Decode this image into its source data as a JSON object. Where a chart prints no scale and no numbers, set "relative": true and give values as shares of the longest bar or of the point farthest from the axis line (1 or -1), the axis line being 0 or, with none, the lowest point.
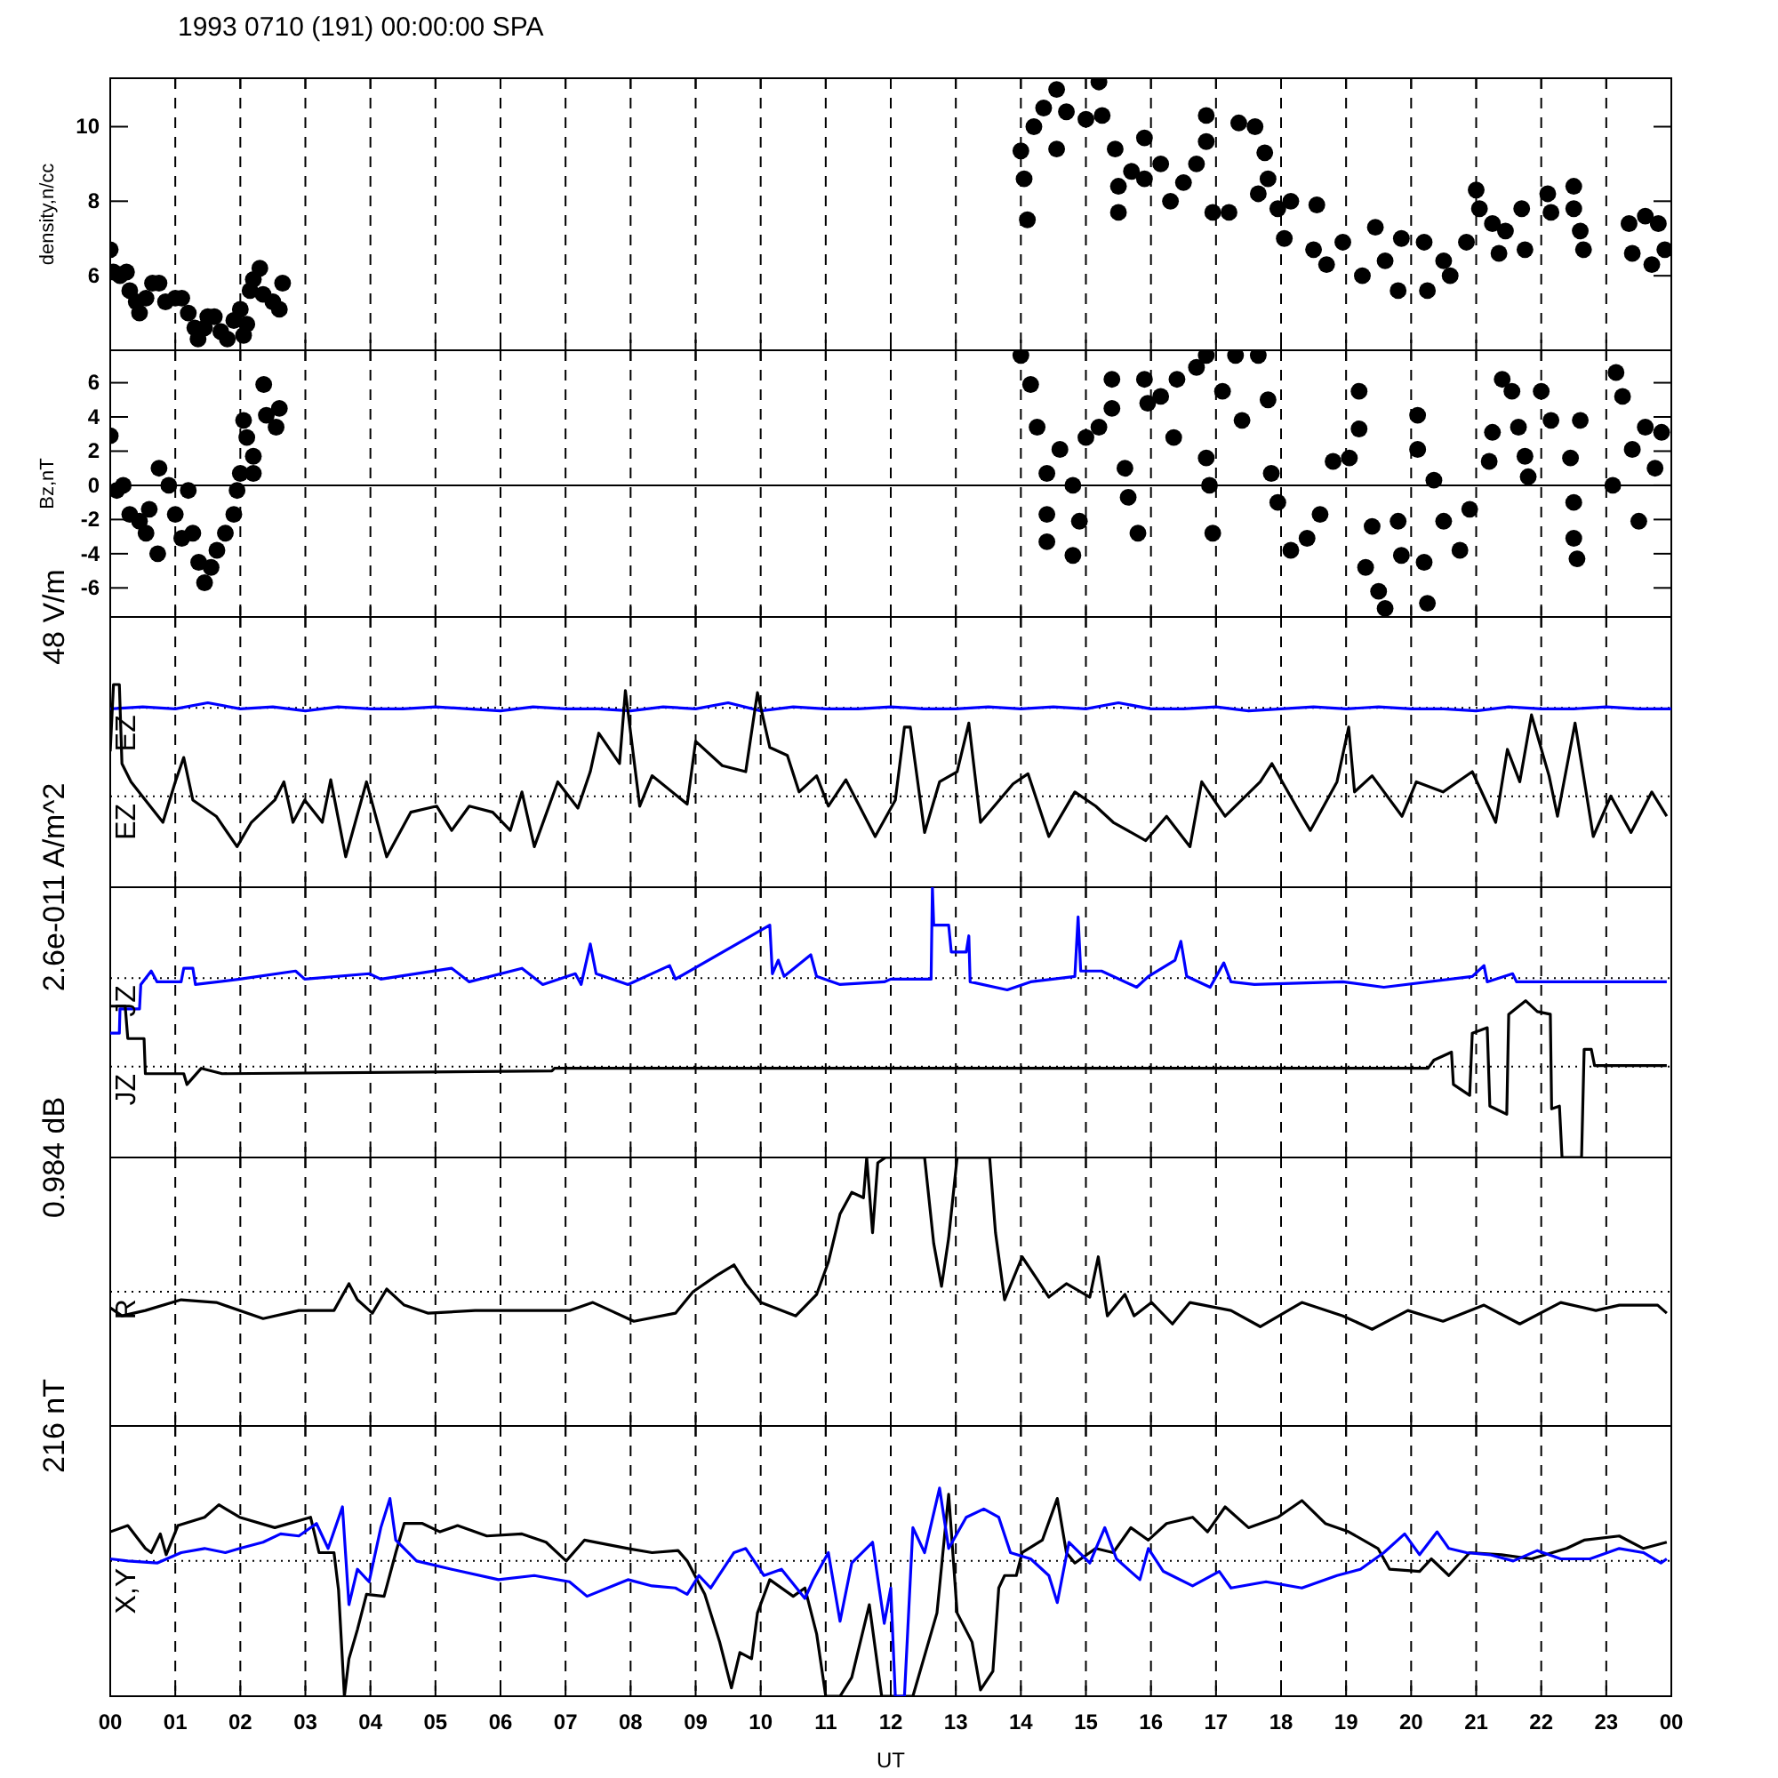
{
  "chart_data": [
    {
      "type": "scatter",
      "title": "1993 0710 (191) 00:00:00 SPA",
      "ylabel": "density,n/cc",
      "color": "#000000",
      "marker": "circle",
      "grid": "x",
      "tick_labels": "y",
      "xlim": [
        0,
        24
      ],
      "xticks": [
        {
          "value": 0,
          "label": null
        },
        {
          "value": 1,
          "label": null
        },
        {
          "value": 2,
          "label": null
        },
        {
          "value": 3,
          "label": null
        },
        {
          "value": 4,
          "label": null
        },
        {
          "value": 5,
          "label": null
        },
        {
          "value": 6,
          "label": null
        },
        {
          "value": 7,
          "label": null
        },
        {
          "value": 8,
          "label": null
        },
        {
          "value": 9,
          "label": null
        },
        {
          "value": 10,
          "label": null
        },
        {
          "value": 11,
          "label": null
        },
        {
          "value": 12,
          "label": null
        },
        {
          "value": 13,
          "label": null
        },
        {
          "value": 14,
          "label": null
        },
        {
          "value": 15,
          "label": null
        },
        {
          "value": 16,
          "label": null
        },
        {
          "value": 17,
          "label": null
        },
        {
          "value": 18,
          "label": null
        },
        {
          "value": 19,
          "label": null
        },
        {
          "value": 20,
          "label": null
        },
        {
          "value": 21,
          "label": null
        },
        {
          "value": 22,
          "label": null
        },
        {
          "value": 23,
          "label": null
        },
        {
          "value": 24,
          "label": null
        }
      ],
      "ylim": [
        4,
        11.3
      ],
      "yticks": [
        6,
        8,
        10
      ],
      "x": [
        0,
        0.05,
        0.15,
        0.25,
        0.3,
        0.4,
        0.45,
        0.55,
        0.65,
        0.75,
        0.85,
        1.0,
        1.1,
        1.2,
        1.3,
        1.35,
        1.45,
        1.5,
        1.6,
        1.7,
        1.8,
        1.9,
        2.0,
        2.05,
        2.1,
        2.15,
        2.2,
        2.3,
        2.35,
        2.5,
        2.6,
        2.65,
        14.0,
        14.05,
        14.1,
        14.2,
        14.35,
        14.55,
        14.55,
        14.7,
        15.0,
        15.2,
        15.25,
        15.45,
        15.5,
        15.5,
        15.7,
        15.9,
        15.9,
        16.15,
        16.3,
        16.5,
        16.7,
        16.85,
        16.85,
        16.95,
        17.2,
        17.35,
        17.6,
        17.75,
        17.65,
        17.8,
        17.95,
        18.05,
        18.15,
        18.55,
        18.5,
        18.7,
        18.95,
        19.25,
        19.45,
        19.6,
        19.8,
        19.85,
        20.2,
        20.25,
        20.5,
        20.6,
        20.85,
        21.0,
        21.05,
        21.25,
        21.35,
        21.45,
        21.7,
        21.75,
        22.1,
        22.15,
        22.5,
        22.5,
        22.6,
        22.65,
        23.35,
        23.4,
        23.6,
        23.7,
        23.8,
        23.9
      ],
      "values": [
        6.7,
        6.1,
        6.0,
        6.1,
        5.6,
        5.3,
        5.0,
        5.4,
        5.8,
        5.8,
        5.3,
        5.4,
        5.4,
        5.0,
        4.6,
        4.3,
        4.6,
        4.9,
        4.9,
        4.5,
        4.3,
        4.8,
        5.1,
        4.4,
        4.7,
        5.6,
        5.9,
        6.2,
        5.5,
        5.3,
        5.1,
        5.8,
        9.35,
        8.6,
        7.5,
        10.0,
        10.5,
        11.0,
        9.4,
        10.4,
        10.2,
        11.2,
        10.3,
        9.4,
        8.4,
        7.7,
        8.8,
        9.7,
        8.6,
        9.0,
        8.0,
        8.5,
        9.0,
        10.3,
        9.6,
        7.7,
        7.7,
        10.1,
        10.0,
        9.3,
        8.2,
        8.6,
        7.8,
        7.0,
        8.0,
        7.9,
        6.7,
        6.3,
        6.9,
        6.0,
        7.3,
        6.4,
        5.6,
        7.0,
        6.9,
        5.6,
        6.4,
        6.0,
        6.9,
        8.3,
        7.8,
        7.4,
        6.6,
        7.2,
        7.8,
        6.7,
        8.2,
        7.7,
        8.4,
        7.8,
        7.2,
        6.7,
        7.4,
        6.6,
        7.6,
        6.3,
        7.4,
        6.7
      ]
    },
    {
      "type": "scatter",
      "ylabel": "Bz,nT",
      "color": "#000000",
      "marker": "circle",
      "grid": "x",
      "tick_labels": "y",
      "xlim": [
        0,
        24
      ],
      "xticks": [
        {
          "value": 0,
          "label": null
        },
        {
          "value": 1,
          "label": null
        },
        {
          "value": 2,
          "label": null
        },
        {
          "value": 3,
          "label": null
        },
        {
          "value": 4,
          "label": null
        },
        {
          "value": 5,
          "label": null
        },
        {
          "value": 6,
          "label": null
        },
        {
          "value": 7,
          "label": null
        },
        {
          "value": 8,
          "label": null
        },
        {
          "value": 9,
          "label": null
        },
        {
          "value": 10,
          "label": null
        },
        {
          "value": 11,
          "label": null
        },
        {
          "value": 12,
          "label": null
        },
        {
          "value": 13,
          "label": null
        },
        {
          "value": 14,
          "label": null
        },
        {
          "value": 15,
          "label": null
        },
        {
          "value": 16,
          "label": null
        },
        {
          "value": 17,
          "label": null
        },
        {
          "value": 18,
          "label": null
        },
        {
          "value": 19,
          "label": null
        },
        {
          "value": 20,
          "label": null
        },
        {
          "value": 21,
          "label": null
        },
        {
          "value": 22,
          "label": null
        },
        {
          "value": 23,
          "label": null
        },
        {
          "value": 24,
          "label": null
        }
      ],
      "ylim": [
        -7.7,
        7.9
      ],
      "yticks": [
        -6,
        -4,
        -2,
        0,
        2,
        4,
        6
      ],
      "ref_lines": [
        {
          "axis": "y",
          "value": 0
        }
      ],
      "x": [
        0,
        0.1,
        0.2,
        0.3,
        0.45,
        0.55,
        0.6,
        0.73,
        0.75,
        0.9,
        1.0,
        1.1,
        1.2,
        1.27,
        1.36,
        1.45,
        1.55,
        1.64,
        1.77,
        1.9,
        1.95,
        2.0,
        2.05,
        2.1,
        2.2,
        2.2,
        2.36,
        2.4,
        2.55,
        2.6,
        14.0,
        14.15,
        14.25,
        14.4,
        14.4,
        14.4,
        14.6,
        14.8,
        14.8,
        14.9,
        15.0,
        15.2,
        15.4,
        15.4,
        15.6,
        15.65,
        15.8,
        15.9,
        15.95,
        16.15,
        16.35,
        16.4,
        16.7,
        16.85,
        16.85,
        16.9,
        16.95,
        17.1,
        17.3,
        17.4,
        17.65,
        17.8,
        17.85,
        17.95,
        18.15,
        18.4,
        18.6,
        18.8,
        19.05,
        19.2,
        19.2,
        19.3,
        19.4,
        19.5,
        19.6,
        19.8,
        19.85,
        20.1,
        20.1,
        20.2,
        20.25,
        20.35,
        20.5,
        20.75,
        20.9,
        21.2,
        21.25,
        21.4,
        21.55,
        21.65,
        21.75,
        21.8,
        22.0,
        22.15,
        22.45,
        22.5,
        22.5,
        22.55,
        22.6,
        23.1,
        23.15,
        23.25,
        23.4,
        23.5,
        23.6,
        23.75,
        23.85
      ],
      "values": [
        2.9,
        -0.3,
        0,
        -1.7,
        -2.1,
        -2.8,
        -1.4,
        -4.0,
        1.0,
        0,
        -1.7,
        -3.1,
        -0.3,
        -2.8,
        -4.5,
        -5.7,
        -4.8,
        -3.8,
        -2.8,
        -1.7,
        -0.3,
        0.7,
        3.8,
        2.8,
        1.7,
        0.7,
        5.9,
        4.1,
        3.4,
        4.5,
        7.6,
        5.9,
        3.4,
        0.7,
        -1.7,
        -3.3,
        2.1,
        0,
        -4.1,
        -2.1,
        2.8,
        3.4,
        6.2,
        4.5,
        1.0,
        -0.7,
        -2.8,
        6.2,
        4.8,
        5.2,
        2.8,
        6.2,
        6.9,
        7.6,
        1.6,
        0,
        -2.8,
        5.5,
        7.6,
        3.8,
        7.6,
        5.0,
        0.7,
        -1.0,
        -3.8,
        -3.1,
        -1.7,
        1.4,
        1.6,
        5.5,
        3.3,
        -4.8,
        -2.4,
        -6.2,
        -7.2,
        -2.1,
        -4.1,
        4.1,
        2.1,
        -4.5,
        -6.9,
        0.3,
        -2.1,
        -3.8,
        -1.4,
        1.4,
        3.1,
        6.2,
        5.5,
        3.4,
        1.7,
        0.5,
        5.5,
        3.8,
        1.6,
        -1.0,
        -3.1,
        -4.3,
        3.8,
        0,
        6.6,
        5.2,
        2.1,
        -2.1,
        3.4,
        1.0,
        3.1
      ]
    },
    {
      "type": "line",
      "relative": true,
      "ylabel": "48 V/m",
      "grid": "x",
      "tick_labels": false,
      "xlim": [
        0,
        24
      ],
      "xticks": [
        {
          "value": 0,
          "label": null
        },
        {
          "value": 1,
          "label": null
        },
        {
          "value": 2,
          "label": null
        },
        {
          "value": 3,
          "label": null
        },
        {
          "value": 4,
          "label": null
        },
        {
          "value": 5,
          "label": null
        },
        {
          "value": 6,
          "label": null
        },
        {
          "value": 7,
          "label": null
        },
        {
          "value": 8,
          "label": null
        },
        {
          "value": 9,
          "label": null
        },
        {
          "value": 10,
          "label": null
        },
        {
          "value": 11,
          "label": null
        },
        {
          "value": 12,
          "label": null
        },
        {
          "value": 13,
          "label": null
        },
        {
          "value": 14,
          "label": null
        },
        {
          "value": 15,
          "label": null
        },
        {
          "value": 16,
          "label": null
        },
        {
          "value": 17,
          "label": null
        },
        {
          "value": 18,
          "label": null
        },
        {
          "value": 19,
          "label": null
        },
        {
          "value": 20,
          "label": null
        },
        {
          "value": 21,
          "label": null
        },
        {
          "value": 22,
          "label": null
        },
        {
          "value": 23,
          "label": null
        },
        {
          "value": 24,
          "label": null
        }
      ],
      "ref_lines": [
        {
          "axis": "y",
          "value": 0.885,
          "line_style": "dotted"
        },
        {
          "axis": "y",
          "value": 0.448,
          "line_style": "dotted"
        }
      ],
      "series": [
        {
          "name": "EZ",
          "color": "#0000ff",
          "x": [
            0,
            0.5,
            1,
            1.5,
            2,
            2.5,
            3,
            3.5,
            4,
            4.5,
            5,
            5.5,
            6,
            6.5,
            7,
            7.5,
            8,
            8.5,
            9,
            9.5,
            10,
            10.5,
            11,
            11.5,
            12,
            12.5,
            13,
            13.5,
            14,
            14.5,
            15,
            15.5,
            16,
            16.5,
            17,
            17.5,
            18,
            18.5,
            19,
            19.5,
            20,
            20.5,
            21,
            21.5,
            22,
            22.5,
            23,
            23.5,
            24
          ],
          "values": [
            0.88,
            0.89,
            0.88,
            0.91,
            0.88,
            0.89,
            0.87,
            0.89,
            0.88,
            0.88,
            0.89,
            0.88,
            0.87,
            0.89,
            0.88,
            0.88,
            0.87,
            0.89,
            0.88,
            0.91,
            0.87,
            0.89,
            0.88,
            0.88,
            0.89,
            0.88,
            0.88,
            0.89,
            0.88,
            0.89,
            0.88,
            0.91,
            0.88,
            0.88,
            0.89,
            0.87,
            0.88,
            0.89,
            0.88,
            0.89,
            0.88,
            0.88,
            0.87,
            0.89,
            0.88,
            0.88,
            0.89,
            0.88,
            0.88
          ]
        },
        {
          "name": "EZ",
          "color": "#000000",
          "x": [
            0,
            0.05,
            0.14,
            0.18,
            0.32,
            0.54,
            0.81,
            1.0,
            1.13,
            1.27,
            1.63,
            1.95,
            2.17,
            2.53,
            2.67,
            2.81,
            2.99,
            3.26,
            3.39,
            3.62,
            3.94,
            4.25,
            4.62,
            5.02,
            5.25,
            5.52,
            5.88,
            6.15,
            6.33,
            6.52,
            6.88,
            7.19,
            7.38,
            7.51,
            7.83,
            7.92,
            8.14,
            8.33,
            8.87,
            9.0,
            9.41,
            9.77,
            9.95,
            10.14,
            10.41,
            10.59,
            10.86,
            11.04,
            11.31,
            11.76,
            12.07,
            12.21,
            12.3,
            12.52,
            12.75,
            13.02,
            13.2,
            13.38,
            13.88,
            14.11,
            14.43,
            14.83,
            15.15,
            15.42,
            15.92,
            16.24,
            16.6,
            16.78,
            17.14,
            17.68,
            17.86,
            18.32,
            18.45,
            18.86,
            19.04,
            19.13,
            19.4,
            19.86,
            20.08,
            20.49,
            20.94,
            21.3,
            21.48,
            21.67,
            21.85,
            22.12,
            22.25,
            22.52,
            22.8,
            23.07,
            23.38,
            23.7,
            23.93
          ],
          "values": [
            0.67,
            1,
            1,
            0.61,
            0.52,
            0.43,
            0.32,
            0.52,
            0.64,
            0.43,
            0.35,
            0.2,
            0.32,
            0.43,
            0.52,
            0.32,
            0.43,
            0.32,
            0.53,
            0.15,
            0.52,
            0.15,
            0.37,
            0.4,
            0.28,
            0.4,
            0.37,
            0.28,
            0.47,
            0.2,
            0.52,
            0.39,
            0.57,
            0.76,
            0.61,
            0.97,
            0.4,
            0.55,
            0.41,
            0.72,
            0.6,
            0.57,
            0.96,
            0.69,
            0.65,
            0.47,
            0.55,
            0.4,
            0.53,
            0.25,
            0.43,
            0.79,
            0.79,
            0.27,
            0.52,
            0.57,
            0.81,
            0.32,
            0.51,
            0.56,
            0.25,
            0.47,
            0.4,
            0.32,
            0.23,
            0.35,
            0.2,
            0.52,
            0.35,
            0.52,
            0.61,
            0.35,
            0.28,
            0.52,
            0.79,
            0.47,
            0.55,
            0.35,
            0.52,
            0.47,
            0.57,
            0.32,
            0.68,
            0.52,
            0.85,
            0.55,
            0.35,
            0.81,
            0.25,
            0.45,
            0.27,
            0.47,
            0.35
          ]
        }
      ]
    },
    {
      "type": "line",
      "relative": true,
      "ylabel": "2.6e-011 A/m^2",
      "grid": "x",
      "tick_labels": false,
      "xlim": [
        0,
        24
      ],
      "xticks": [
        {
          "value": 0,
          "label": null
        },
        {
          "value": 1,
          "label": null
        },
        {
          "value": 2,
          "label": null
        },
        {
          "value": 3,
          "label": null
        },
        {
          "value": 4,
          "label": null
        },
        {
          "value": 5,
          "label": null
        },
        {
          "value": 6,
          "label": null
        },
        {
          "value": 7,
          "label": null
        },
        {
          "value": 8,
          "label": null
        },
        {
          "value": 9,
          "label": null
        },
        {
          "value": 10,
          "label": null
        },
        {
          "value": 11,
          "label": null
        },
        {
          "value": 12,
          "label": null
        },
        {
          "value": 13,
          "label": null
        },
        {
          "value": 14,
          "label": null
        },
        {
          "value": 15,
          "label": null
        },
        {
          "value": 16,
          "label": null
        },
        {
          "value": 17,
          "label": null
        },
        {
          "value": 18,
          "label": null
        },
        {
          "value": 19,
          "label": null
        },
        {
          "value": 20,
          "label": null
        },
        {
          "value": 21,
          "label": null
        },
        {
          "value": 22,
          "label": null
        },
        {
          "value": 23,
          "label": null
        },
        {
          "value": 24,
          "label": null
        }
      ],
      "ref_lines": [
        {
          "axis": "y",
          "value": 0.664,
          "line_style": "dotted"
        },
        {
          "axis": "y",
          "value": 0.336,
          "line_style": "dotted"
        }
      ],
      "series": [
        {
          "name": "JZ",
          "color": "#0000ff",
          "x": [
            0,
            0.14,
            0.15,
            0.27,
            0.45,
            0.47,
            0.63,
            0.72,
            1.09,
            1.13,
            1.27,
            1.31,
            1.99,
            2.85,
            2.99,
            3.98,
            4.16,
            5.25,
            5.52,
            6.33,
            6.65,
            7.15,
            7.24,
            7.38,
            7.47,
            7.96,
            8.6,
            8.69,
            10.14,
            10.18,
            10.27,
            10.36,
            10.77,
            10.86,
            11.22,
            11.9,
            12.0,
            12.62,
            12.64,
            12.66,
            12.89,
            12.93,
            13.16,
            13.2,
            13.22,
            13.79,
            14.15,
            14.83,
            14.88,
            14.92,
            15.24,
            15.78,
            15.96,
            16.37,
            16.46,
            16.55,
            16.91,
            17.12,
            17.23,
            17.59,
            18.95,
            19.58,
            20.94,
            21.12,
            21.17,
            21.56,
            21.62,
            23.93
          ],
          "values": [
            0.46,
            0.46,
            0.55,
            0.55,
            0.55,
            0.64,
            0.69,
            0.65,
            0.65,
            0.7,
            0.7,
            0.64,
            0.66,
            0.69,
            0.66,
            0.68,
            0.66,
            0.7,
            0.65,
            0.7,
            0.64,
            0.68,
            0.64,
            0.79,
            0.68,
            0.64,
            0.71,
            0.66,
            0.86,
            0.68,
            0.73,
            0.67,
            0.75,
            0.67,
            0.64,
            0.65,
            0.66,
            0.66,
            1.0,
            0.86,
            0.86,
            0.76,
            0.76,
            0.82,
            0.65,
            0.62,
            0.65,
            0.67,
            0.89,
            0.69,
            0.69,
            0.63,
            0.67,
            0.73,
            0.8,
            0.67,
            0.63,
            0.72,
            0.65,
            0.64,
            0.65,
            0.63,
            0.67,
            0.71,
            0.65,
            0.68,
            0.65,
            0.65
          ]
        },
        {
          "name": "JZ",
          "color": "#000000",
          "x": [
            0,
            0.23,
            0.27,
            0.52,
            0.54,
            1.13,
            1.18,
            1.4,
            1.72,
            6.79,
            6.83,
            17.68,
            20.26,
            20.35,
            20.62,
            20.65,
            20.9,
            20.94,
            21.17,
            21.21,
            21.47,
            21.5,
            21.76,
            21.94,
            22.14,
            22.16,
            22.28,
            22.32,
            22.62,
            22.66,
            22.77,
            22.82,
            23.11,
            23.93
          ],
          "values": [
            0.56,
            0.56,
            0.44,
            0.44,
            0.31,
            0.31,
            0.27,
            0.33,
            0.31,
            0.32,
            0.33,
            0.33,
            0.33,
            0.36,
            0.39,
            0.27,
            0.23,
            0.46,
            0.48,
            0.19,
            0.16,
            0.53,
            0.58,
            0.54,
            0.53,
            0.18,
            0.19,
            0,
            0,
            0.4,
            0.4,
            0.34,
            0.34,
            0.34
          ]
        }
      ]
    },
    {
      "type": "line",
      "relative": true,
      "ylabel": "0.984 dB",
      "grid": "x",
      "tick_labels": false,
      "xlim": [
        0,
        24
      ],
      "xticks": [
        {
          "value": 0,
          "label": null
        },
        {
          "value": 1,
          "label": null
        },
        {
          "value": 2,
          "label": null
        },
        {
          "value": 3,
          "label": null
        },
        {
          "value": 4,
          "label": null
        },
        {
          "value": 5,
          "label": null
        },
        {
          "value": 6,
          "label": null
        },
        {
          "value": 7,
          "label": null
        },
        {
          "value": 8,
          "label": null
        },
        {
          "value": 9,
          "label": null
        },
        {
          "value": 10,
          "label": null
        },
        {
          "value": 11,
          "label": null
        },
        {
          "value": 12,
          "label": null
        },
        {
          "value": 13,
          "label": null
        },
        {
          "value": 14,
          "label": null
        },
        {
          "value": 15,
          "label": null
        },
        {
          "value": 16,
          "label": null
        },
        {
          "value": 17,
          "label": null
        },
        {
          "value": 18,
          "label": null
        },
        {
          "value": 19,
          "label": null
        },
        {
          "value": 20,
          "label": null
        },
        {
          "value": 21,
          "label": null
        },
        {
          "value": 22,
          "label": null
        },
        {
          "value": 23,
          "label": null
        },
        {
          "value": 24,
          "label": null
        }
      ],
      "ref_lines": [
        {
          "axis": "y",
          "value": 0.5,
          "line_style": "dotted"
        }
      ],
      "series": [
        {
          "name": "R",
          "color": "#000000",
          "x": [
            0,
            0.18,
            0.54,
            1.09,
            1.63,
            2.35,
            2.9,
            3.44,
            3.67,
            3.8,
            4.03,
            4.25,
            4.52,
            4.89,
            5.61,
            6.52,
            7.06,
            7.42,
            7.69,
            8.05,
            8.69,
            8.96,
            9.32,
            9.59,
            9.77,
            10.0,
            10.54,
            10.86,
            11.04,
            11.22,
            11.4,
            11.58,
            11.63,
            11.72,
            11.8,
            11.92,
            12.12,
            12.52,
            12.66,
            12.78,
            12.89,
            13.02,
            13.52,
            13.61,
            13.75,
            14.02,
            14.24,
            14.43,
            14.7,
            15.06,
            15.19,
            15.33,
            15.6,
            15.74,
            16.01,
            16.33,
            16.6,
            17.23,
            17.68,
            18.32,
            18.95,
            19.4,
            19.95,
            20.49,
            21.12,
            21.67,
            22.3,
            22.84,
            23.2,
            23.79,
            23.93
          ],
          "values": [
            0.44,
            0.41,
            0.43,
            0.47,
            0.46,
            0.4,
            0.43,
            0.43,
            0.53,
            0.47,
            0.42,
            0.51,
            0.45,
            0.42,
            0.43,
            0.43,
            0.43,
            0.46,
            0.43,
            0.39,
            0.42,
            0.5,
            0.56,
            0.6,
            0.53,
            0.46,
            0.41,
            0.49,
            0.61,
            0.79,
            0.87,
            0.85,
            1.0,
            0.72,
            0.98,
            1.0,
            1.0,
            1.0,
            0.68,
            0.52,
            0.7,
            1.0,
            1.0,
            0.72,
            0.47,
            0.63,
            0.55,
            0.48,
            0.53,
            0.48,
            0.63,
            0.41,
            0.49,
            0.41,
            0.46,
            0.38,
            0.46,
            0.43,
            0.37,
            0.46,
            0.41,
            0.36,
            0.43,
            0.39,
            0.45,
            0.38,
            0.46,
            0.43,
            0.45,
            0.45,
            0.42
          ]
        }
      ]
    },
    {
      "type": "line",
      "relative": true,
      "ylabel": "216 nT",
      "xlabel": "UT",
      "annotations": [
        "X,Y"
      ],
      "grid": "x",
      "tick_labels": "x",
      "xlim": [
        0,
        24
      ],
      "xticks": [
        {
          "value": 0,
          "label": "00"
        },
        {
          "value": 1,
          "label": "01"
        },
        {
          "value": 2,
          "label": "02"
        },
        {
          "value": 3,
          "label": "03"
        },
        {
          "value": 4,
          "label": "04"
        },
        {
          "value": 5,
          "label": "05"
        },
        {
          "value": 6,
          "label": "06"
        },
        {
          "value": 7,
          "label": "07"
        },
        {
          "value": 8,
          "label": "08"
        },
        {
          "value": 9,
          "label": "09"
        },
        {
          "value": 10,
          "label": "10"
        },
        {
          "value": 11,
          "label": "11"
        },
        {
          "value": 12,
          "label": "12"
        },
        {
          "value": 13,
          "label": "13"
        },
        {
          "value": 14,
          "label": "14"
        },
        {
          "value": 15,
          "label": "15"
        },
        {
          "value": 16,
          "label": "16"
        },
        {
          "value": 17,
          "label": "17"
        },
        {
          "value": 18,
          "label": "18"
        },
        {
          "value": 19,
          "label": "19"
        },
        {
          "value": 20,
          "label": "20"
        },
        {
          "value": 21,
          "label": "21"
        },
        {
          "value": 22,
          "label": "22"
        },
        {
          "value": 23,
          "label": "23"
        },
        {
          "value": 24,
          "label": "00"
        }
      ],
      "ref_lines": [
        {
          "axis": "y",
          "value": 0.65,
          "line_style": "dotted"
        }
      ],
      "series": [
        {
          "color": "#000000",
          "x": [
            0,
            0.27,
            0.54,
            0.63,
            0.77,
            0.86,
            1.04,
            1.45,
            1.67,
            1.99,
            2.53,
            3.08,
            3.21,
            3.44,
            3.51,
            3.6,
            3.67,
            3.8,
            3.94,
            4.21,
            4.39,
            4.52,
            4.8,
            5.07,
            5.34,
            5.79,
            6.33,
            6.7,
            7.01,
            7.29,
            7.96,
            8.33,
            8.73,
            8.87,
            9.14,
            9.37,
            9.55,
            9.68,
            9.86,
            9.95,
            10.14,
            10.5,
            10.68,
            10.86,
            11.0,
            11.22,
            11.4,
            11.67,
            11.86,
            12.0,
            12.34,
            12.71,
            12.89,
            13.02,
            13.25,
            13.38,
            13.57,
            13.66,
            13.75,
            13.93,
            14.02,
            14.33,
            14.56,
            14.7,
            14.83,
            15.15,
            15.42,
            15.69,
            15.96,
            16.24,
            16.64,
            16.87,
            17.14,
            17.5,
            17.95,
            18.32,
            18.68,
            19.04,
            19.49,
            19.67,
            20.13,
            20.31,
            20.58,
            20.9,
            21.39,
            21.85,
            22.39,
            22.66,
            23.2,
            23.57,
            23.93
          ],
          "values": [
            0.79,
            0.82,
            0.71,
            0.69,
            0.78,
            0.68,
            0.82,
            0.86,
            0.92,
            0.86,
            0.81,
            0.86,
            0.69,
            0.69,
            0.51,
            0,
            0.18,
            0.32,
            0.49,
            0.48,
            0.69,
            0.83,
            0.83,
            0.79,
            0.82,
            0.77,
            0.78,
            0.74,
            0.65,
            0.75,
            0.71,
            0.69,
            0.7,
            0.65,
            0.49,
            0.26,
            0.04,
            0.21,
            0.18,
            0.4,
            0.56,
            0.48,
            0.52,
            0.3,
            0,
            0,
            0.09,
            0.44,
            0,
            0,
            0,
            0.4,
            0.97,
            0.4,
            0.26,
            0.03,
            0.12,
            0.52,
            0.58,
            0.58,
            0.69,
            0.75,
            0.95,
            0.69,
            0.64,
            0.71,
            0.69,
            0.81,
            0.75,
            0.83,
            0.86,
            0.79,
            0.91,
            0.81,
            0.86,
            0.94,
            0.83,
            0.79,
            0.71,
            0.61,
            0.6,
            0.66,
            0.58,
            0.69,
            0.68,
            0.66,
            0.71,
            0.75,
            0.77,
            0.71,
            0.74
          ]
        },
        {
          "color": "#0000ff",
          "x": [
            0,
            0.27,
            0.72,
            1.09,
            1.45,
            1.77,
            1.99,
            2.35,
            2.62,
            2.9,
            3.17,
            3.35,
            3.57,
            3.67,
            3.8,
            3.98,
            4.16,
            4.3,
            4.39,
            4.71,
            5.25,
            5.97,
            6.52,
            7.06,
            7.33,
            7.96,
            8.33,
            8.69,
            8.87,
            9.05,
            9.23,
            9.59,
            9.77,
            10.05,
            10.32,
            10.68,
            10.81,
            11.04,
            11.22,
            11.4,
            11.72,
            11.9,
            12.0,
            12.07,
            12.21,
            12.34,
            12.52,
            12.75,
            12.89,
            13.16,
            13.43,
            13.66,
            13.84,
            14.15,
            14.43,
            14.56,
            14.74,
            15.06,
            15.29,
            15.47,
            15.83,
            15.96,
            16.19,
            16.64,
            17.05,
            17.23,
            17.77,
            18.32,
            18.86,
            19.22,
            19.58,
            19.9,
            20.13,
            20.4,
            20.58,
            20.85,
            21.21,
            21.57,
            21.94,
            22.3,
            22.75,
            23.2,
            23.57,
            23.84,
            23.93
          ],
          "values": [
            0.66,
            0.65,
            0.64,
            0.69,
            0.71,
            0.69,
            0.71,
            0.74,
            0.78,
            0.77,
            0.83,
            0.71,
            0.91,
            0.44,
            0.61,
            0.55,
            0.81,
            0.95,
            0.75,
            0.65,
            0.61,
            0.56,
            0.58,
            0.55,
            0.48,
            0.56,
            0.53,
            0.52,
            0.49,
            0.58,
            0.52,
            0.69,
            0.71,
            0.58,
            0.61,
            0.47,
            0.56,
            0.69,
            0.36,
            0.64,
            0.74,
            0.35,
            0.52,
            0,
            0,
            0.81,
            0.69,
            1,
            0.71,
            0.86,
            0.9,
            0.86,
            0.69,
            0.66,
            0.58,
            0.45,
            0.74,
            0.64,
            0.81,
            0.66,
            0.56,
            0.71,
            0.6,
            0.53,
            0.6,
            0.52,
            0.55,
            0.52,
            0.58,
            0.61,
            0.69,
            0.78,
            0.68,
            0.79,
            0.71,
            0.69,
            0.68,
            0.65,
            0.7,
            0.66,
            0.66,
            0.71,
            0.69,
            0.64,
            0.66
          ]
        }
      ]
    }
  ]
}
